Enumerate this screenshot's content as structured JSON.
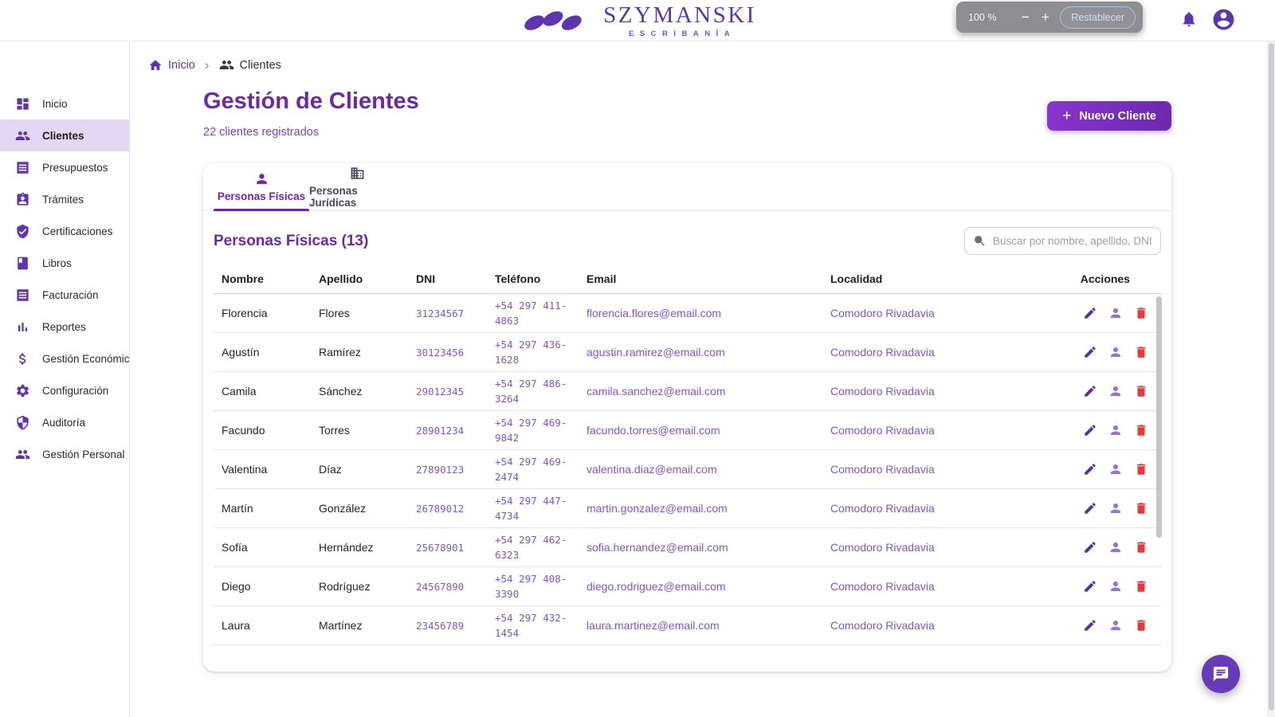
{
  "header": {
    "brand": {
      "name": "SZYMANSKI",
      "tagline": "ESCRIBANÍA"
    },
    "zoom_widget": {
      "level": "100 %",
      "decrease_label": "−",
      "increase_label": "+",
      "reset_label": "Restablecer"
    }
  },
  "sidebar": {
    "items": [
      {
        "id": "inicio",
        "label": "Inicio",
        "icon": "dashboard",
        "active": false
      },
      {
        "id": "clientes",
        "label": "Clientes",
        "icon": "people",
        "active": true
      },
      {
        "id": "presupuestos",
        "label": "Presupuestos",
        "icon": "receipt",
        "active": false
      },
      {
        "id": "tramites",
        "label": "Trámites",
        "icon": "assignment",
        "active": false
      },
      {
        "id": "certificaciones",
        "label": "Certificaciones",
        "icon": "verified",
        "active": false
      },
      {
        "id": "libros",
        "label": "Libros",
        "icon": "book",
        "active": false
      },
      {
        "id": "facturacion",
        "label": "Facturación",
        "icon": "receipt",
        "active": false
      },
      {
        "id": "reportes",
        "label": "Reportes",
        "icon": "barchart",
        "active": false
      },
      {
        "id": "gestion-economica",
        "label": "Gestión Económica",
        "icon": "dollar",
        "active": false
      },
      {
        "id": "configuracion",
        "label": "Configuración",
        "icon": "gear",
        "active": false
      },
      {
        "id": "auditoria",
        "label": "Auditoría",
        "icon": "shield",
        "active": false
      },
      {
        "id": "gestion-personal",
        "label": "Gestión Personal",
        "icon": "people",
        "active": false
      }
    ]
  },
  "breadcrumb": {
    "home_label": "Inicio",
    "current_label": "Clientes"
  },
  "page": {
    "title": "Gestión de Clientes",
    "subtitle": "22 clientes registrados",
    "new_client_label": "Nuevo Cliente",
    "new_client_icon": "+"
  },
  "tabs": [
    {
      "label": "Personas Físicas",
      "icon": "person",
      "active": true
    },
    {
      "label": "Personas Jurídicas",
      "icon": "business",
      "active": false
    }
  ],
  "section": {
    "title": "Personas Físicas (13)",
    "search_placeholder": "Buscar por nombre, apellido, DNI"
  },
  "table": {
    "headers": [
      "Nombre",
      "Apellido",
      "DNI",
      "Teléfono",
      "Email",
      "Localidad",
      "Acciones"
    ],
    "rows": [
      {
        "nombre": "Florencia",
        "apellido": "Flores",
        "dni": "31234567",
        "telefono": "+54 297 411-4863",
        "email": "florencia.flores@email.com",
        "localidad": "Comodoro Rivadavia"
      },
      {
        "nombre": "Agustín",
        "apellido": "Ramírez",
        "dni": "30123456",
        "telefono": "+54 297 436-1628",
        "email": "agustin.ramirez@email.com",
        "localidad": "Comodoro Rivadavia"
      },
      {
        "nombre": "Camila",
        "apellido": "Sánchez",
        "dni": "29012345",
        "telefono": "+54 297 486-3264",
        "email": "camila.sanchez@email.com",
        "localidad": "Comodoro Rivadavia"
      },
      {
        "nombre": "Facundo",
        "apellido": "Torres",
        "dni": "28901234",
        "telefono": "+54 297 469-9842",
        "email": "facundo.torres@email.com",
        "localidad": "Comodoro Rivadavia"
      },
      {
        "nombre": "Valentina",
        "apellido": "Díaz",
        "dni": "27890123",
        "telefono": "+54 297 469-2474",
        "email": "valentina.diaz@email.com",
        "localidad": "Comodoro Rivadavia"
      },
      {
        "nombre": "Martín",
        "apellido": "González",
        "dni": "26789012",
        "telefono": "+54 297 447-4734",
        "email": "martin.gonzalez@email.com",
        "localidad": "Comodoro Rivadavia"
      },
      {
        "nombre": "Sofía",
        "apellido": "Hernández",
        "dni": "25678901",
        "telefono": "+54 297 462-6323",
        "email": "sofia.hernandez@email.com",
        "localidad": "Comodoro Rivadavia"
      },
      {
        "nombre": "Diego",
        "apellido": "Rodríguez",
        "dni": "24567890",
        "telefono": "+54 297 408-3390",
        "email": "diego.rodriguez@email.com",
        "localidad": "Comodoro Rivadavia"
      },
      {
        "nombre": "Laura",
        "apellido": "Martínez",
        "dni": "23456789",
        "telefono": "+54 297 432-1454",
        "email": "laura.martinez@email.com",
        "localidad": "Comodoro Rivadavia"
      }
    ]
  },
  "colors": {
    "primary_purple": "#5E35B1",
    "heading_purple": "#6d28a9",
    "link_purple": "#7e57c2",
    "delete_red": "#e5393c",
    "active_item_bg": "#e3d7f3"
  }
}
